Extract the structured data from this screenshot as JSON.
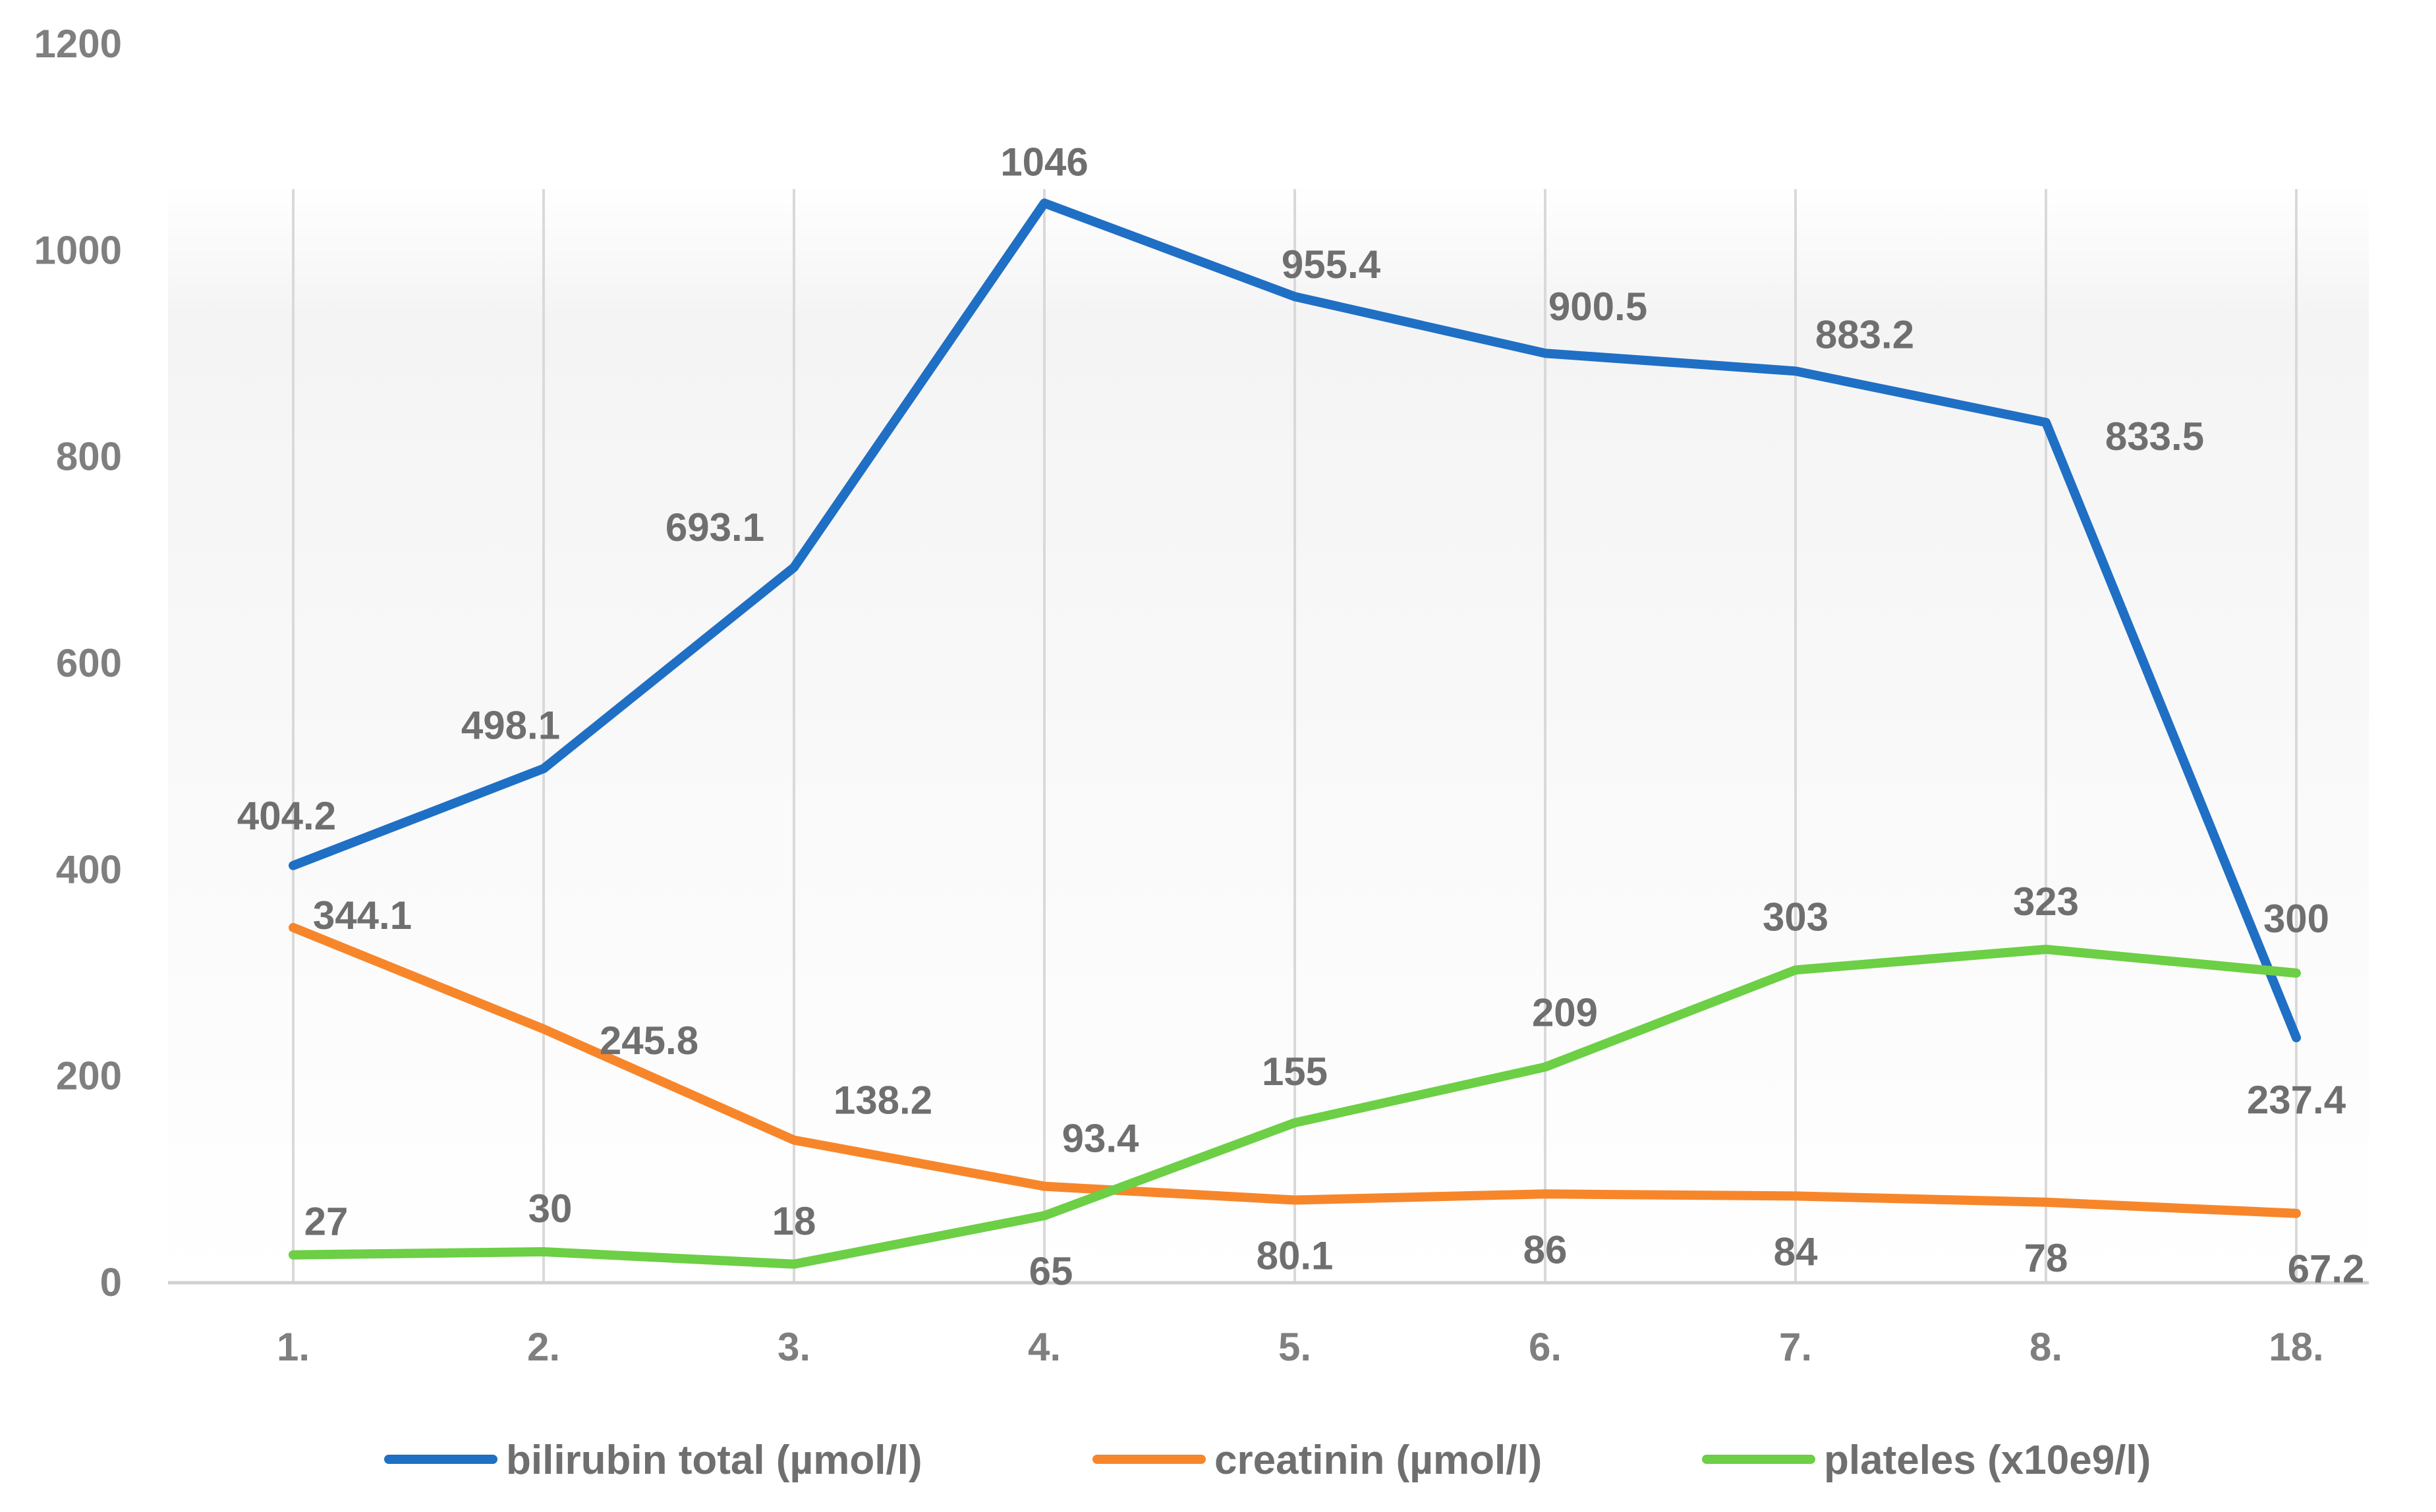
{
  "chart_data": {
    "type": "line",
    "title": "",
    "xlabel": "",
    "ylabel": "",
    "categories": [
      "1.",
      "2.",
      "3.",
      "4.",
      "5.",
      "6.",
      "7.",
      "8.",
      "18."
    ],
    "ylim": [
      0,
      1200
    ],
    "yticks": [
      0,
      200,
      400,
      600,
      800,
      1000,
      1200
    ],
    "grid": "vertical",
    "legend_position": "bottom",
    "series": [
      {
        "name": "bilirubin total (µmol/l)",
        "color": "#1f6fc5",
        "values": [
          404.2,
          498.1,
          693.1,
          1046,
          955.4,
          900.5,
          883.2,
          833.5,
          237.4
        ],
        "labels": [
          "404.2",
          "498.1",
          "693.1",
          "1046",
          "955.4",
          "900.5",
          "883.2",
          "833.5",
          "237.4"
        ]
      },
      {
        "name": "creatinin (µmol/l)",
        "color": "#f7862b",
        "values": [
          344.1,
          245.8,
          138.2,
          93.4,
          80.1,
          86,
          84,
          78,
          67.2
        ],
        "labels": [
          "344.1",
          "245.8",
          "138.2",
          "93.4",
          "80.1",
          "86",
          "84",
          "78",
          "67.2"
        ]
      },
      {
        "name": "plateles (x10e9/l)",
        "color": "#6ccf45",
        "values": [
          27,
          30,
          18,
          65,
          155,
          209,
          303,
          323,
          300
        ],
        "labels": [
          "27",
          "30",
          "18",
          "65",
          "155",
          "209",
          "303",
          "323",
          "300"
        ]
      }
    ]
  }
}
